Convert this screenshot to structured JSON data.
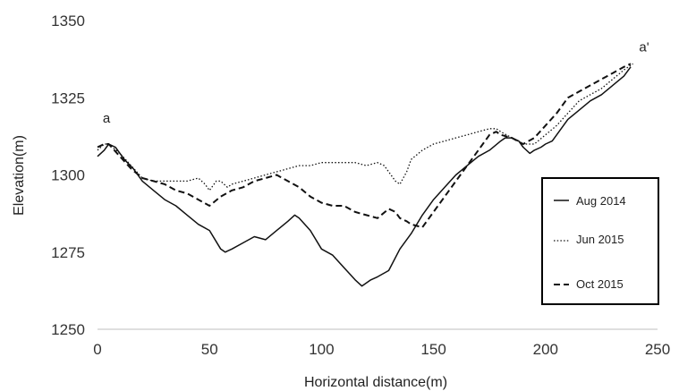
{
  "chart_data": {
    "type": "line",
    "xlabel": "Horizontal distance(m)",
    "ylabel": "Elevation(m)",
    "xlim": [
      0,
      250
    ],
    "ylim": [
      1250,
      1350
    ],
    "x_ticks": [
      0,
      50,
      100,
      150,
      200,
      250
    ],
    "y_ticks": [
      1250,
      1275,
      1300,
      1325,
      1350
    ],
    "x_tick_labels": [
      "0",
      "50",
      "100",
      "150",
      "200",
      "250"
    ],
    "y_tick_labels": [
      "1250",
      "1275",
      "1300",
      "1325",
      "1350"
    ],
    "grid": false,
    "legend_position": "right",
    "annotations": [
      {
        "text": "a",
        "x": 4,
        "y": 1317
      },
      {
        "text": "a'",
        "x": 244,
        "y": 1340
      }
    ],
    "series": [
      {
        "name": "Aug 2014",
        "style": "solid",
        "x": [
          0,
          3,
          5,
          8,
          12,
          16,
          20,
          25,
          30,
          35,
          40,
          45,
          50,
          55,
          57,
          60,
          65,
          70,
          75,
          80,
          85,
          88,
          90,
          95,
          100,
          105,
          110,
          115,
          118,
          120,
          122,
          125,
          130,
          135,
          140,
          145,
          150,
          155,
          160,
          165,
          170,
          175,
          180,
          182,
          185,
          188,
          190,
          193,
          195,
          198,
          200,
          203,
          205,
          210,
          215,
          220,
          225,
          230,
          235,
          238
        ],
        "y": [
          1306,
          1308,
          1310,
          1309,
          1305,
          1302,
          1298,
          1295,
          1292,
          1290,
          1287,
          1284,
          1282,
          1276,
          1275,
          1276,
          1278,
          1280,
          1279,
          1282,
          1285,
          1287,
          1286,
          1282,
          1276,
          1274,
          1270,
          1266,
          1264,
          1265,
          1266,
          1267,
          1269,
          1276,
          1281,
          1287,
          1292,
          1296,
          1300,
          1303,
          1306,
          1308,
          1311,
          1312,
          1312,
          1311,
          1309,
          1307,
          1308,
          1309,
          1310,
          1311,
          1313,
          1318,
          1321,
          1324,
          1326,
          1329,
          1332,
          1335
        ]
      },
      {
        "name": "Jun 2015",
        "style": "dotted",
        "x": [
          0,
          3,
          5,
          10,
          15,
          20,
          25,
          30,
          35,
          40,
          45,
          48,
          50,
          53,
          55,
          58,
          60,
          65,
          70,
          75,
          80,
          85,
          90,
          95,
          100,
          105,
          110,
          115,
          120,
          125,
          128,
          130,
          133,
          135,
          138,
          140,
          145,
          150,
          155,
          160,
          165,
          170,
          175,
          178,
          180,
          185,
          190,
          195,
          200,
          205,
          210,
          215,
          220,
          225,
          230,
          235,
          239
        ],
        "y": [
          1308,
          1310,
          1310,
          1307,
          1303,
          1299,
          1298,
          1298,
          1298,
          1298,
          1299,
          1297,
          1295,
          1298,
          1298,
          1296,
          1297,
          1298,
          1299,
          1300,
          1301,
          1302,
          1303,
          1303,
          1304,
          1304,
          1304,
          1304,
          1303,
          1304,
          1303,
          1301,
          1298,
          1297,
          1301,
          1305,
          1308,
          1310,
          1311,
          1312,
          1313,
          1314,
          1315,
          1315,
          1314,
          1312,
          1310,
          1310,
          1313,
          1316,
          1320,
          1324,
          1326,
          1328,
          1331,
          1334,
          1336
        ]
      },
      {
        "name": "Oct 2015",
        "style": "dashed",
        "x": [
          0,
          3,
          5,
          10,
          15,
          20,
          25,
          30,
          35,
          40,
          45,
          50,
          55,
          60,
          65,
          70,
          75,
          80,
          85,
          90,
          95,
          100,
          105,
          110,
          115,
          120,
          125,
          130,
          133,
          135,
          138,
          140,
          145,
          150,
          155,
          160,
          165,
          170,
          175,
          178,
          180,
          185,
          190,
          195,
          200,
          205,
          210,
          215,
          220,
          225,
          230,
          235,
          238
        ],
        "y": [
          1309,
          1310,
          1310,
          1306,
          1302,
          1299,
          1298,
          1297,
          1295,
          1294,
          1292,
          1290,
          1293,
          1295,
          1296,
          1298,
          1299,
          1300,
          1298,
          1296,
          1293,
          1291,
          1290,
          1290,
          1288,
          1287,
          1286,
          1289,
          1288,
          1286,
          1285,
          1284,
          1283,
          1288,
          1293,
          1298,
          1303,
          1308,
          1313,
          1314,
          1313,
          1312,
          1310,
          1312,
          1316,
          1320,
          1325,
          1327,
          1329,
          1331,
          1333,
          1335,
          1336
        ]
      }
    ]
  }
}
